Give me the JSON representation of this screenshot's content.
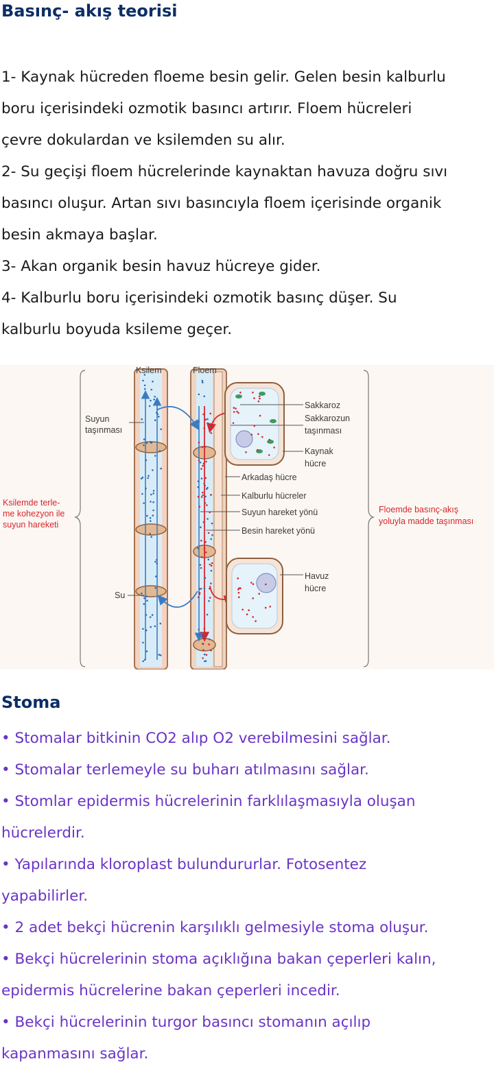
{
  "section1": {
    "title": "Basınç- akış teorisi",
    "lines": [
      "1- Kaynak hücreden floeme besin gelir. Gelen besin kalburlu",
      "boru içerisindeki ozmotik basıncı artırır.  Floem hücreleri",
      "çevre dokulardan ve ksilemden su alır.",
      "2- Su geçişi floem hücrelerinde kaynaktan havuza doğru sıvı",
      "basıncı oluşur. Artan sıvı basıncıyla floem içerisinde organik",
      "besin akmaya başlar.",
      "3-  Akan organik besin havuz hücreye gider.",
      "4- Kalburlu boru içerisindeki ozmotik basınç düşer. Su",
      "kalburlu boyuda ksileme geçer."
    ]
  },
  "figure": {
    "ksilem": "Ksilem",
    "floem": "Floem",
    "suyun1": "Suyun",
    "suyun2": "taşınması",
    "su": "Su",
    "left1": "Ksilemde  terle-",
    "left2": "me kohezyon ile",
    "left3": "suyun hareketi",
    "sakkaroz": "Sakkaroz",
    "sakkarozun1": "Sakkarozun",
    "sakkarozun2": "taşınması",
    "kaynak1": "Kaynak",
    "kaynak2": "hücre",
    "arkadas": "Arkadaş hücre",
    "kalburlu": "Kalburlu hücreler",
    "suyun_yonu": "Suyun hareket yönü",
    "besin_yonu": "Besin hareket yönü",
    "havuz1": "Havuz",
    "havuz2": "hücre",
    "right1": "Floemde basınç-akış",
    "right2": "yoluyla madde taşınması"
  },
  "section2": {
    "title": "Stoma",
    "lines": [
      "• Stomalar bitkinin CO2 alıp O2 verebilmesini sağlar.",
      "• Stomalar terlemeyle su buharı atılmasını sağlar.",
      "• Stomlar epidermis hücrelerinin farklılaşmasıyla oluşan",
      "hücrelerdir.",
      "• Yapılarında kloroplast bulundururlar. Fotosentez",
      "yapabilirler.",
      "• 2 adet bekçi hücrenin karşılıklı gelmesiyle stoma oluşur.",
      "• Bekçi hücrelerinin stoma açıklığına bakan çeperleri kalın,",
      "epidermis hücrelerine bakan çeperleri incedir.",
      "• Bekçi hücrelerinin turgor basıncı stomanın açılıp",
      "kapanmasını sağlar."
    ]
  }
}
